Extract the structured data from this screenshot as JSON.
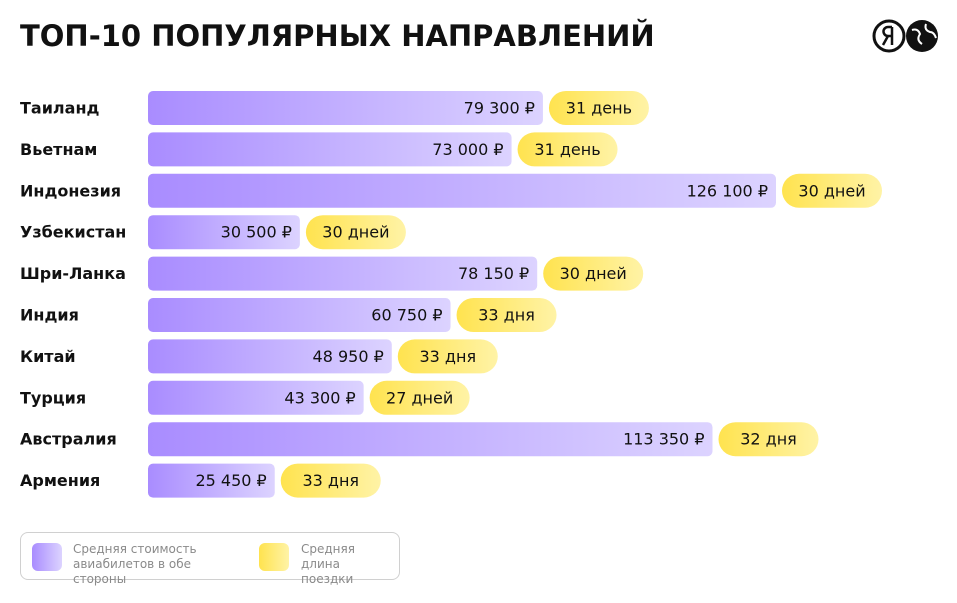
{
  "chart_data": {
    "type": "bar",
    "title": "ТОП-10 ПОПУЛЯРНЫХ НАПРАВЛЕНИЙ",
    "categories": [
      "Таиланд",
      "Вьетнам",
      "Индонезия",
      "Узбекистан",
      "Шри-Ланка",
      "Индия",
      "Китай",
      "Турция",
      "Австралия",
      "Армения"
    ],
    "series": [
      {
        "name": "Средняя стоимость авиабилетов в обе стороны",
        "color": "#a98cff",
        "values": [
          79300,
          73000,
          126100,
          30500,
          78150,
          60750,
          48950,
          43300,
          113350,
          25450
        ],
        "value_labels": [
          "79 300 ₽",
          "73 000 ₽",
          "126 100 ₽",
          "30 500 ₽",
          "78 150 ₽",
          "60 750 ₽",
          "48 950 ₽",
          "43 300 ₽",
          "113 350 ₽",
          "25 450 ₽"
        ]
      },
      {
        "name": "Средняя длина поездки",
        "color": "#ffe34f",
        "values": [
          31,
          31,
          30,
          30,
          30,
          33,
          33,
          27,
          32,
          33
        ],
        "value_labels": [
          "31 день",
          "31 день",
          "30 дней",
          "30 дней",
          "30 дней",
          "33 дня",
          "33 дня",
          "27 дней",
          "32 дня",
          "33 дня"
        ]
      }
    ]
  }
}
